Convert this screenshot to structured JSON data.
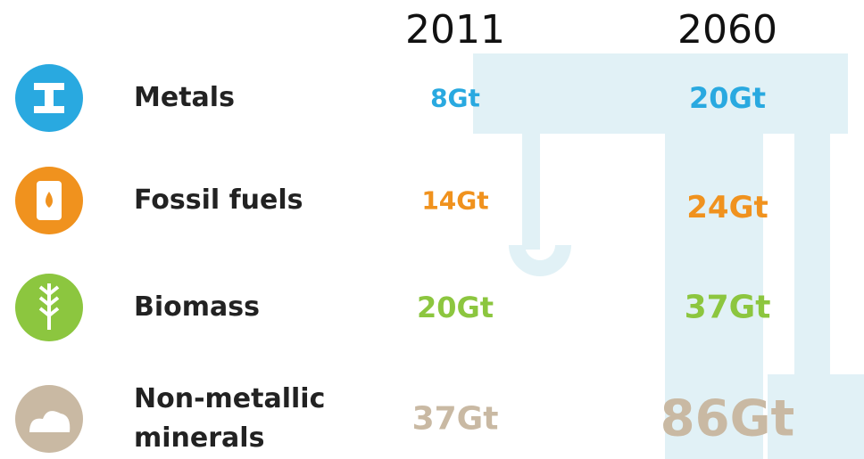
{
  "table": {
    "columns": [
      "2011",
      "2060"
    ],
    "rows": [
      {
        "label": "Metals",
        "values": [
          "8Gt",
          "20Gt"
        ]
      },
      {
        "label": "Fossil fuels",
        "values": [
          "14Gt",
          "24Gt"
        ]
      },
      {
        "label": "Biomass",
        "values": [
          "20Gt",
          "37Gt"
        ]
      },
      {
        "label": "Non-metallic minerals",
        "values": [
          "37Gt",
          "86Gt"
        ]
      }
    ]
  }
}
